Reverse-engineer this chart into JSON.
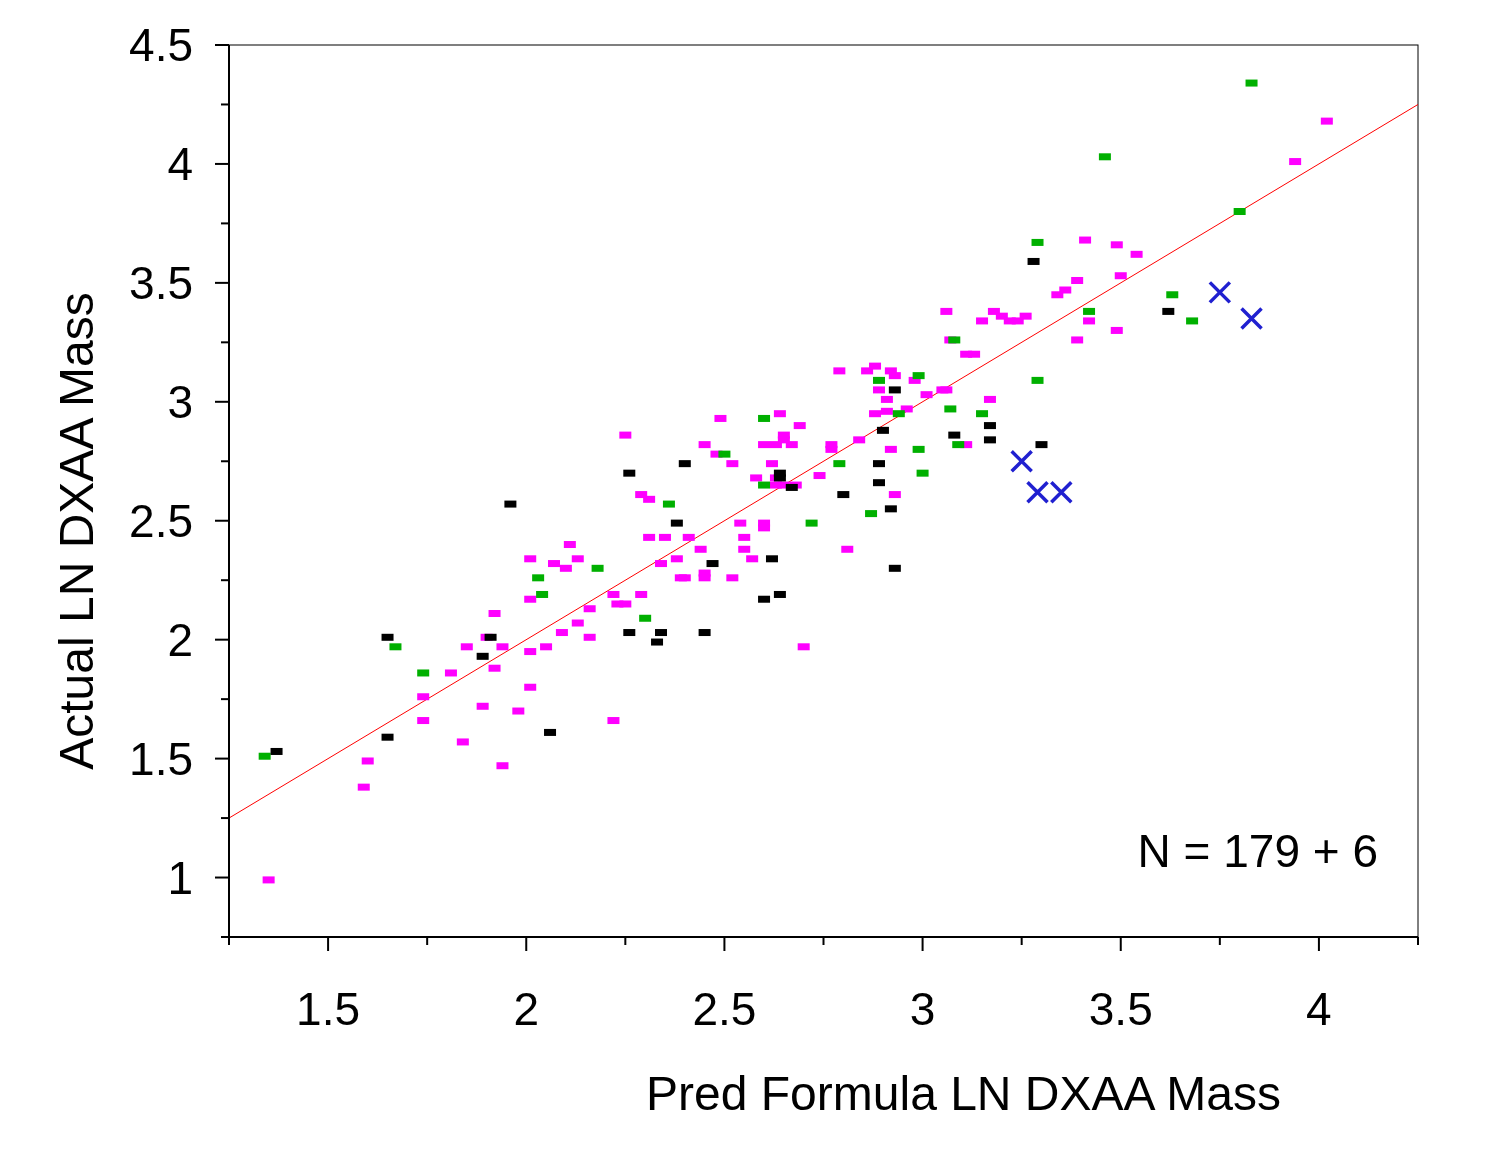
{
  "chart_data": {
    "type": "scatter",
    "xlabel": "Pred Formula LN DXAA Mass",
    "ylabel": "Actual LN DXAA Mass",
    "xlim": [
      1.25,
      4.25
    ],
    "ylim": [
      0.75,
      4.5
    ],
    "xticks": [
      {
        "value": 1.25,
        "label": null
      },
      1.5,
      {
        "value": 1.75,
        "label": null
      },
      2,
      {
        "value": 2.25,
        "label": null
      },
      2.5,
      {
        "value": 2.75,
        "label": null
      },
      3,
      {
        "value": 3.25,
        "label": null
      },
      3.5,
      {
        "value": 3.75,
        "label": null
      },
      4,
      {
        "value": 4.25,
        "label": null
      }
    ],
    "yticks": [
      {
        "value": 0.75,
        "label": null
      },
      1,
      {
        "value": 1.25,
        "label": null
      },
      1.5,
      {
        "value": 1.75,
        "label": null
      },
      2,
      {
        "value": 2.25,
        "label": null
      },
      2.5,
      {
        "value": 2.75,
        "label": null
      },
      3,
      {
        "value": 3.25,
        "label": null
      },
      3.5,
      {
        "value": 3.75,
        "label": null
      },
      4,
      {
        "value": 4.25,
        "label": null
      },
      4.5
    ],
    "grid": false,
    "marker": "square",
    "annotations": [
      "N = 179 + 6"
    ],
    "series": [
      {
        "type": "line",
        "color": "#ff0000",
        "x": [
          1.25,
          4.25
        ],
        "values": [
          1.25,
          4.25
        ],
        "marker": "none"
      },
      {
        "color": "#ff00ff",
        "x": [
          1.35,
          1.59,
          1.6,
          1.74,
          1.74,
          1.81,
          1.84,
          1.85,
          1.89,
          1.9,
          1.92,
          1.92,
          1.94,
          1.94,
          1.98,
          2.01,
          2.01,
          2.01,
          2.01,
          2.05,
          2.07,
          2.09,
          2.1,
          2.11,
          2.13,
          2.13,
          2.16,
          2.16,
          2.22,
          2.22,
          2.23,
          2.25,
          2.25,
          2.29,
          2.29,
          2.31,
          2.31,
          2.34,
          2.35,
          2.38,
          2.39,
          2.4,
          2.41,
          2.44,
          2.45,
          2.45,
          2.45,
          2.48,
          2.49,
          2.52,
          2.52,
          2.54,
          2.55,
          2.55,
          2.57,
          2.58,
          2.6,
          2.6,
          2.6,
          2.62,
          2.63,
          2.63,
          2.63,
          2.64,
          2.65,
          2.65,
          2.65,
          2.67,
          2.68,
          2.69,
          2.7,
          2.74,
          2.77,
          2.77,
          2.79,
          2.81,
          2.84,
          2.86,
          2.88,
          2.88,
          2.89,
          2.91,
          2.91,
          2.92,
          2.92,
          2.93,
          2.93,
          2.96,
          2.98,
          3.01,
          3.05,
          3.06,
          3.06,
          3.07,
          3.11,
          3.11,
          3.13,
          3.15,
          3.17,
          3.18,
          3.2,
          3.22,
          3.24,
          3.26,
          3.34,
          3.36,
          3.39,
          3.39,
          3.41,
          3.42,
          3.49,
          3.49,
          3.5,
          3.54,
          3.94,
          4.02
        ],
        "values": [
          0.99,
          1.38,
          1.49,
          1.66,
          1.76,
          1.86,
          1.57,
          1.97,
          1.72,
          2.01,
          2.11,
          1.88,
          1.97,
          1.47,
          1.7,
          1.95,
          2.17,
          1.8,
          2.34,
          1.97,
          2.32,
          2.03,
          2.3,
          2.4,
          2.07,
          2.34,
          2.01,
          2.13,
          2.19,
          1.66,
          2.15,
          2.15,
          2.86,
          2.19,
          2.61,
          2.59,
          2.43,
          2.32,
          2.43,
          2.34,
          2.26,
          2.26,
          2.43,
          2.38,
          2.26,
          2.28,
          2.82,
          2.78,
          2.93,
          2.74,
          2.26,
          2.49,
          2.43,
          2.38,
          2.34,
          2.68,
          2.82,
          2.47,
          2.49,
          2.74,
          2.68,
          2.82,
          2.65,
          2.95,
          2.84,
          2.86,
          2.65,
          2.82,
          2.65,
          2.9,
          1.97,
          2.69,
          2.8,
          2.82,
          3.13,
          2.38,
          2.84,
          3.13,
          2.95,
          3.15,
          3.05,
          3.01,
          2.96,
          2.8,
          3.13,
          3.11,
          2.61,
          2.97,
          3.09,
          3.03,
          3.05,
          3.05,
          3.38,
          3.26,
          2.82,
          3.2,
          3.2,
          3.34,
          3.01,
          3.38,
          3.36,
          3.34,
          3.34,
          3.36,
          3.45,
          3.47,
          3.51,
          3.26,
          3.68,
          3.34,
          3.66,
          3.3,
          3.53,
          3.62,
          4.01,
          4.18
        ]
      },
      {
        "color": "#00b000",
        "x": [
          1.34,
          1.67,
          1.74,
          2.03,
          2.04,
          2.18,
          2.3,
          2.36,
          2.5,
          2.6,
          2.6,
          2.72,
          2.79,
          2.87,
          2.89,
          2.94,
          2.99,
          2.99,
          3.0,
          3.07,
          3.08,
          3.09,
          3.15,
          3.29,
          3.29,
          3.42,
          3.46,
          3.63,
          3.68,
          3.8,
          3.83
        ],
        "values": [
          1.51,
          1.97,
          1.86,
          2.26,
          2.19,
          2.3,
          2.09,
          2.57,
          2.78,
          2.93,
          2.65,
          2.49,
          2.74,
          2.53,
          3.09,
          2.95,
          3.11,
          2.8,
          2.7,
          2.97,
          3.26,
          2.82,
          2.95,
          3.09,
          3.67,
          3.38,
          4.03,
          3.45,
          3.34,
          3.8,
          4.34
        ]
      },
      {
        "color": "#000000",
        "x": [
          1.37,
          1.65,
          1.65,
          1.89,
          1.91,
          1.96,
          2.06,
          2.26,
          2.26,
          2.33,
          2.34,
          2.38,
          2.4,
          2.45,
          2.47,
          2.6,
          2.62,
          2.64,
          2.64,
          2.64,
          2.67,
          2.8,
          2.89,
          2.89,
          2.9,
          2.92,
          2.93,
          2.93,
          3.08,
          3.17,
          3.17,
          3.28,
          3.3,
          3.62
        ],
        "values": [
          1.53,
          2.01,
          1.59,
          1.93,
          2.01,
          2.57,
          1.61,
          2.03,
          2.7,
          1.99,
          2.03,
          2.49,
          2.74,
          2.03,
          2.32,
          2.17,
          2.34,
          2.19,
          2.68,
          2.7,
          2.64,
          2.61,
          2.74,
          2.66,
          2.88,
          2.55,
          2.3,
          3.05,
          2.86,
          2.9,
          2.84,
          3.59,
          2.82,
          3.38
        ]
      },
      {
        "color": "#2020d0",
        "marker": "cross",
        "x": [
          3.25,
          3.29,
          3.35,
          3.75,
          3.83
        ],
        "values": [
          2.75,
          2.62,
          2.62,
          3.46,
          3.35
        ]
      }
    ]
  }
}
